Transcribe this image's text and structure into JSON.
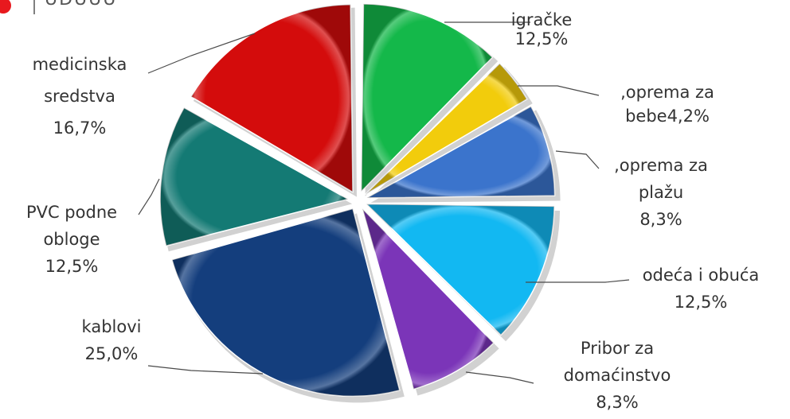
{
  "chart_data": {
    "type": "pie",
    "style": "exploded-3d",
    "slices": [
      {
        "lines": [
          "igračke",
          "12,5%"
        ],
        "value": 12.5,
        "color": "#14b84a"
      },
      {
        "lines": [
          ",oprema za",
          "bebe4,2%"
        ],
        "value": 4.2,
        "color": "#f2cc0c"
      },
      {
        "lines": [
          ",oprema za",
          "plažu",
          "8,3%"
        ],
        "value": 8.3,
        "color": "#3b74cc"
      },
      {
        "lines": [
          "odeća i obuća",
          "12,5%"
        ],
        "value": 12.5,
        "color": "#12b8f2"
      },
      {
        "lines": [
          "Pribor za",
          "domaćinstvo",
          "8,3%"
        ],
        "value": 8.3,
        "color": "#7b35b8"
      },
      {
        "lines": [
          "kablovi",
          "25,0%"
        ],
        "value": 25.0,
        "color": "#143e7d"
      },
      {
        "lines": [
          "PVC podne",
          "obloge",
          "12,5%"
        ],
        "value": 12.5,
        "color": "#147a74"
      },
      {
        "lines": [
          "medicinska",
          "sredstva",
          "16,7%"
        ],
        "value": 16.7,
        "color": "#d40c0c"
      }
    ]
  },
  "header_fragment": {
    "bullet_color": "#e8191e",
    "text": "UDUUU"
  }
}
